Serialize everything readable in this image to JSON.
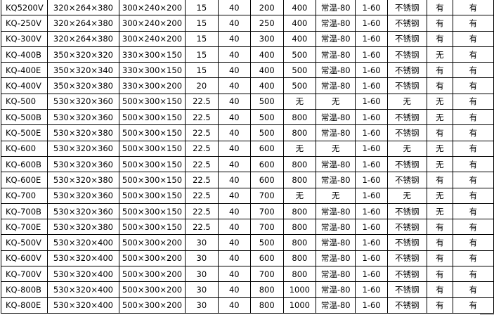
{
  "table": {
    "rows": [
      [
        "KQ5200V",
        "320×264×380",
        "300×240×200",
        "15",
        "40",
        "200",
        "400",
        "常温-80",
        "1-60",
        "不锈钢",
        "有",
        "有"
      ],
      [
        "KQ-250V",
        "320×264×380",
        "300×240×200",
        "15",
        "40",
        "250",
        "400",
        "常温-80",
        "1-60",
        "不锈钢",
        "有",
        "有"
      ],
      [
        "KQ-300V",
        "320×264×380",
        "300×240×200",
        "15",
        "40",
        "300",
        "400",
        "常温-80",
        "1-60",
        "不锈钢",
        "有",
        "有"
      ],
      [
        "KQ-400B",
        "350×320×320",
        "330×300×150",
        "15",
        "40",
        "400",
        "500",
        "常温-80",
        "1-60",
        "不锈钢",
        "无",
        "有"
      ],
      [
        "KQ-400E",
        "350×320×340",
        "330×300×150",
        "15",
        "40",
        "400",
        "500",
        "常温-80",
        "1-60",
        "不锈钢",
        "有",
        "有"
      ],
      [
        "KQ-400V",
        "350×320×380",
        "330×300×200",
        "20",
        "40",
        "400",
        "500",
        "常温-80",
        "1-60",
        "不锈钢",
        "有",
        "有"
      ],
      [
        "KQ-500",
        "530×320×360",
        "500×300×150",
        "22.5",
        "40",
        "500",
        "无",
        "无",
        "1-60",
        "无",
        "无",
        "有"
      ],
      [
        "KQ-500B",
        "530×320×360",
        "500×300×150",
        "22.5",
        "40",
        "500",
        "800",
        "常温-80",
        "1-60",
        "不锈钢",
        "无",
        "有"
      ],
      [
        "KQ-500E",
        "530×320×380",
        "500×300×150",
        "22.5",
        "40",
        "500",
        "800",
        "常温-80",
        "1-60",
        "不锈钢",
        "有",
        "有"
      ],
      [
        "KQ-600",
        "530×320×360",
        "500×300×150",
        "22.5",
        "40",
        "600",
        "无",
        "无",
        "1-60",
        "无",
        "无",
        "有"
      ],
      [
        "KQ-600B",
        "530×320×360",
        "500×300×150",
        "22.5",
        "40",
        "600",
        "800",
        "常温-80",
        "1-60",
        "不锈钢",
        "无",
        "有"
      ],
      [
        "KQ-600E",
        "530×320×380",
        "500×300×150",
        "22.5",
        "40",
        "600",
        "800",
        "常温-80",
        "1-60",
        "不锈钢",
        "有",
        "有"
      ],
      [
        "KQ-700",
        "530×320×360",
        "500×300×150",
        "22.5",
        "40",
        "700",
        "无",
        "无",
        "1-60",
        "无",
        "无",
        "有"
      ],
      [
        "KQ-700B",
        "530×320×360",
        "500×300×150",
        "22.5",
        "40",
        "700",
        "800",
        "常温-80",
        "1-60",
        "不锈钢",
        "无",
        "有"
      ],
      [
        "KQ-700E",
        "530×320×380",
        "500×300×150",
        "22.5",
        "40",
        "700",
        "800",
        "常温-80",
        "1-60",
        "不锈钢",
        "有",
        "有"
      ],
      [
        "KQ-500V",
        "530×320×400",
        "500×300×200",
        "30",
        "40",
        "500",
        "800",
        "常温-80",
        "1-60",
        "不锈钢",
        "有",
        "有"
      ],
      [
        "KQ-600V",
        "530×320×400",
        "500×300×200",
        "30",
        "40",
        "600",
        "800",
        "常温-80",
        "1-60",
        "不锈钢",
        "有",
        "有"
      ],
      [
        "KQ-700V",
        "530×320×400",
        "500×300×200",
        "30",
        "40",
        "700",
        "800",
        "常温-80",
        "1-60",
        "不锈钢",
        "有",
        "有"
      ],
      [
        "KQ-800B",
        "530×320×400",
        "500×300×200",
        "30",
        "40",
        "800",
        "1000",
        "常温-80",
        "1-60",
        "不锈钢",
        "有",
        "有"
      ],
      [
        "KQ-800E",
        "530×320×400",
        "500×300×200",
        "30",
        "40",
        "800",
        "1000",
        "常温-80",
        "1-60",
        "不锈钢",
        "有",
        "有"
      ]
    ]
  }
}
